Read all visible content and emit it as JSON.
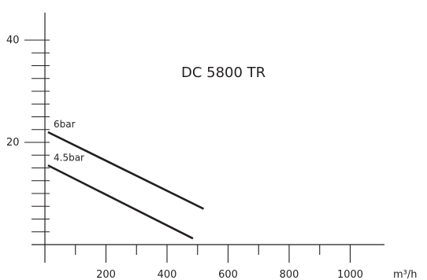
{
  "chart_data": {
    "type": "line",
    "title": "DC 5800 TR",
    "xlabel": "m³/h",
    "ylabel": "",
    "xlim": [
      0,
      1100
    ],
    "ylim": [
      0,
      45
    ],
    "x_tick_labels": [
      {
        "value": 200,
        "label": "200"
      },
      {
        "value": 400,
        "label": "400"
      },
      {
        "value": 600,
        "label": "600"
      },
      {
        "value": 800,
        "label": "800"
      },
      {
        "value": 1000,
        "label": "1000"
      }
    ],
    "x_minor_ticks": [
      100,
      300,
      500,
      700,
      900
    ],
    "y_tick_labels": [
      {
        "value": 20,
        "label": "20"
      },
      {
        "value": 40,
        "label": "40"
      }
    ],
    "y_minor_ticks": [
      2.5,
      5,
      7.5,
      10,
      12.5,
      15,
      17.5,
      22.5,
      25,
      27.5,
      30,
      32.5,
      35,
      37.5
    ],
    "grid": false,
    "legend": "none",
    "series": [
      {
        "name": "6bar",
        "points": [
          {
            "x": 10,
            "y": 22
          },
          {
            "x": 520,
            "y": 7
          }
        ]
      },
      {
        "name": "4.5bar",
        "points": [
          {
            "x": 10,
            "y": 15.5
          },
          {
            "x": 485,
            "y": 1.2
          }
        ]
      }
    ],
    "colors": {
      "ink": "#231f20",
      "background": "#ffffff"
    }
  }
}
